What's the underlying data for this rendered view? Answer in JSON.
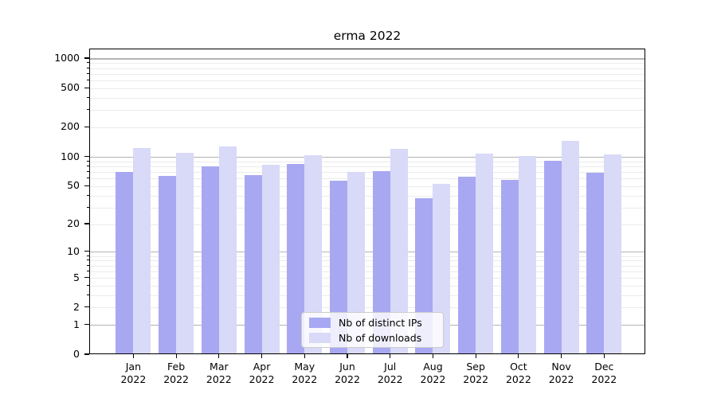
{
  "chart_data": {
    "type": "bar",
    "title": "erma 2022",
    "year_label": "2022",
    "categories": [
      "Jan",
      "Feb",
      "Mar",
      "Apr",
      "May",
      "Jun",
      "Jul",
      "Aug",
      "Sep",
      "Oct",
      "Nov",
      "Dec"
    ],
    "series": [
      {
        "name": "Nb of distinct IPs",
        "color": "#a8a8f2",
        "values": [
          70,
          64,
          80,
          65,
          85,
          57,
          72,
          38,
          63,
          58,
          92,
          69
        ]
      },
      {
        "name": "Nb of downloads",
        "color": "#d9d9f8",
        "values": [
          124,
          111,
          128,
          84,
          104,
          71,
          122,
          53,
          109,
          103,
          148,
          107
        ]
      }
    ],
    "yscale": "log1p",
    "ylim": [
      0,
      1250
    ],
    "yticks": [
      0,
      1,
      2,
      5,
      10,
      20,
      50,
      100,
      200,
      500,
      1000
    ],
    "grid": {
      "major_values": [
        1,
        10,
        100,
        1000
      ],
      "minor_values": [
        2,
        3,
        4,
        5,
        6,
        7,
        8,
        9,
        20,
        30,
        40,
        50,
        60,
        70,
        80,
        90,
        200,
        300,
        400,
        500,
        600,
        700,
        800,
        900
      ],
      "major_color": "#b3b3b3",
      "minor_color": "#ebebeb"
    },
    "legend_position": "lower center",
    "text_color": "#000000",
    "spine_color": "#000000"
  }
}
